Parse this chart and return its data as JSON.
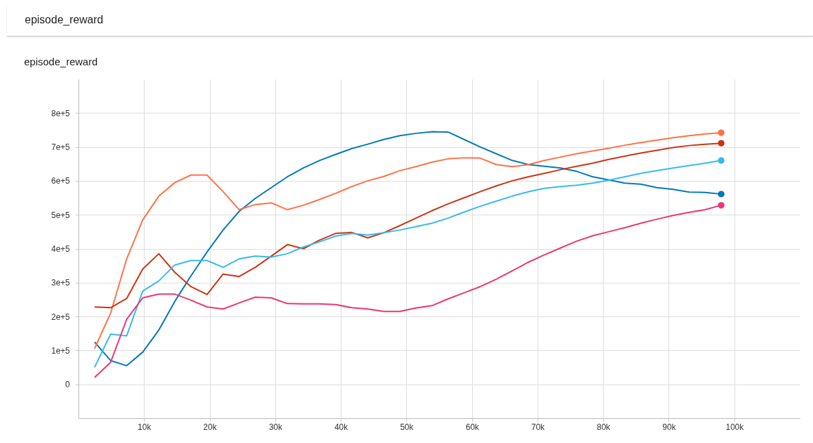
{
  "chart_data": {
    "type": "line",
    "title": "episode_reward",
    "subtitle": "episode_reward",
    "x": [
      2450,
      4900,
      7350,
      9800,
      12250,
      14700,
      17150,
      19600,
      22050,
      24500,
      26950,
      29400,
      31850,
      34300,
      36750,
      39200,
      41650,
      44100,
      46550,
      49000,
      51450,
      53900,
      56350,
      58800,
      61250,
      63700,
      66150,
      68600,
      71050,
      73500,
      75950,
      78400,
      80850,
      83300,
      85750,
      88200,
      90650,
      93100,
      95550,
      98000
    ],
    "series": [
      {
        "color": "#0077bb",
        "values": [
          125000,
          70000,
          55000,
          95000,
          160000,
          245000,
          320000,
          390000,
          455000,
          510000,
          548000,
          580000,
          612000,
          638000,
          660000,
          678000,
          695000,
          708000,
          722000,
          733000,
          740000,
          745000,
          744000,
          722000,
          700000,
          680000,
          660000,
          648000,
          643000,
          638000,
          628000,
          612000,
          603000,
          593000,
          590000,
          580000,
          575000,
          567000,
          566000,
          561000
        ]
      },
      {
        "color": "#ff7043",
        "values": [
          105000,
          210000,
          370000,
          485000,
          555000,
          595000,
          617000,
          617000,
          568000,
          515000,
          530000,
          535000,
          515000,
          528000,
          545000,
          563000,
          583000,
          600000,
          613000,
          630000,
          642000,
          655000,
          665000,
          668000,
          667000,
          648000,
          642000,
          648000,
          660000,
          670000,
          680000,
          688000,
          696000,
          705000,
          713000,
          720000,
          727000,
          733000,
          738000,
          742000
        ]
      },
      {
        "color": "#cc3311",
        "values": [
          228000,
          226000,
          253000,
          340000,
          385000,
          330000,
          288000,
          265000,
          325000,
          318000,
          345000,
          378000,
          412000,
          400000,
          425000,
          445000,
          448000,
          432000,
          447000,
          468000,
          490000,
          512000,
          532000,
          550000,
          568000,
          585000,
          600000,
          612000,
          622000,
          633000,
          643000,
          652000,
          663000,
          673000,
          682000,
          690000,
          698000,
          704000,
          708000,
          711000
        ]
      },
      {
        "color": "#33bbee",
        "values": [
          50000,
          148000,
          143000,
          275000,
          305000,
          352000,
          365000,
          365000,
          345000,
          370000,
          378000,
          375000,
          385000,
          405000,
          420000,
          437000,
          445000,
          440000,
          447000,
          455000,
          465000,
          475000,
          490000,
          508000,
          525000,
          540000,
          555000,
          568000,
          578000,
          583000,
          587000,
          593000,
          602000,
          612000,
          622000,
          630000,
          638000,
          645000,
          652000,
          660000
        ]
      },
      {
        "color": "#ee3377",
        "values": [
          20000,
          65000,
          192000,
          255000,
          266000,
          266000,
          248000,
          228000,
          222000,
          240000,
          257000,
          255000,
          238000,
          237000,
          237000,
          235000,
          226000,
          222000,
          215000,
          215000,
          225000,
          232000,
          252000,
          270000,
          288000,
          310000,
          335000,
          360000,
          382000,
          402000,
          422000,
          438000,
          450000,
          462000,
          475000,
          487000,
          498000,
          507000,
          515000,
          528000
        ]
      }
    ],
    "xlim": [
      0,
      110000
    ],
    "xticks": [
      {
        "value": 10000,
        "label": "10k"
      },
      {
        "value": 20000,
        "label": "20k"
      },
      {
        "value": 30000,
        "label": "30k"
      },
      {
        "value": 40000,
        "label": "40k"
      },
      {
        "value": 50000,
        "label": "50k"
      },
      {
        "value": 60000,
        "label": "60k"
      },
      {
        "value": 70000,
        "label": "70k"
      },
      {
        "value": 80000,
        "label": "80k"
      },
      {
        "value": 90000,
        "label": "90k"
      },
      {
        "value": 100000,
        "label": "100k"
      }
    ],
    "ylim": [
      -100000,
      900000
    ],
    "yticks": [
      0,
      {
        "value": 100000,
        "label": "1e+5"
      },
      {
        "value": 200000,
        "label": "2e+5"
      },
      {
        "value": 300000,
        "label": "3e+5"
      },
      {
        "value": 400000,
        "label": "4e+5"
      },
      {
        "value": 500000,
        "label": "5e+5"
      },
      {
        "value": 600000,
        "label": "6e+5"
      },
      {
        "value": 700000,
        "label": "7e+5"
      },
      {
        "value": 800000,
        "label": "8e+5"
      }
    ],
    "grid": true,
    "legend": false
  }
}
